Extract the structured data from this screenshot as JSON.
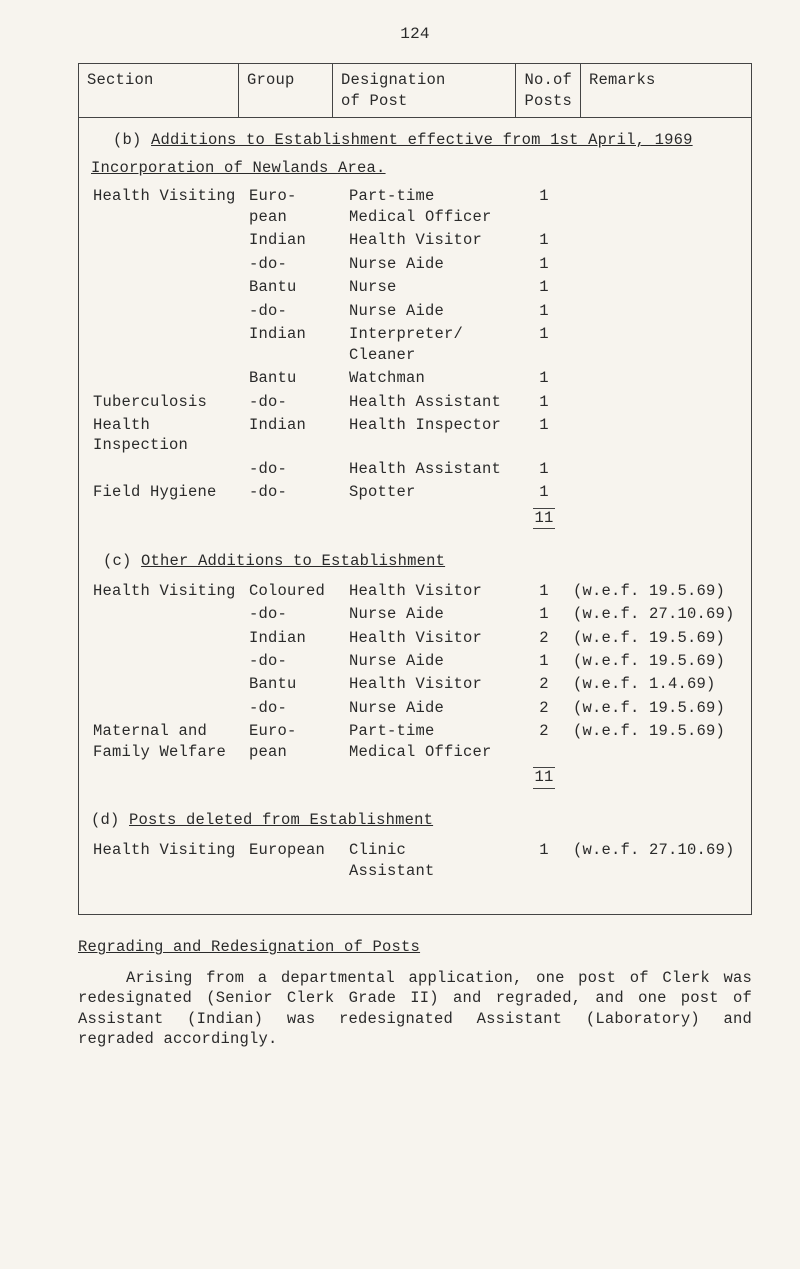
{
  "page_number": "124",
  "header": {
    "section": "Section",
    "group": "Group",
    "designation_l1": "Designation",
    "designation_l2": "of Post",
    "posts_l1": "No.of",
    "posts_l2": "Posts",
    "remarks": "Remarks"
  },
  "part_b": {
    "label": "(b)",
    "title": "Additions to Establishment effective from 1st April, 1969",
    "sub": "Incorporation of Newlands Area.",
    "rows": [
      {
        "section": "Health Visiting",
        "group": "Euro-\npean",
        "design": "Part-time\nMedical Officer",
        "n": "1",
        "rem": ""
      },
      {
        "section": "",
        "group": "Indian",
        "design": "Health Visitor",
        "n": "1",
        "rem": ""
      },
      {
        "section": "",
        "group": "-do-",
        "design": "Nurse Aide",
        "n": "1",
        "rem": ""
      },
      {
        "section": "",
        "group": "Bantu",
        "design": "Nurse",
        "n": "1",
        "rem": ""
      },
      {
        "section": "",
        "group": "-do-",
        "design": "Nurse Aide",
        "n": "1",
        "rem": ""
      },
      {
        "section": "",
        "group": "Indian",
        "design": "Interpreter/\nCleaner",
        "n": "1",
        "rem": ""
      },
      {
        "section": "",
        "group": "Bantu",
        "design": "Watchman",
        "n": "1",
        "rem": ""
      },
      {
        "section": "Tuberculosis",
        "group": "-do-",
        "design": "Health Assistant",
        "n": "1",
        "rem": ""
      },
      {
        "section": "Health Inspection",
        "group": "Indian",
        "design": "Health Inspector",
        "n": "1",
        "rem": ""
      },
      {
        "section": "",
        "group": "-do-",
        "design": "Health Assistant",
        "n": "1",
        "rem": ""
      },
      {
        "section": "Field Hygiene",
        "group": "-do-",
        "design": "Spotter",
        "n": "1",
        "rem": ""
      }
    ],
    "total": "11"
  },
  "part_c": {
    "label": "(c)",
    "title": "Other Additions to Establishment",
    "rows": [
      {
        "section": "Health Visiting",
        "group": "Coloured",
        "design": "Health Visitor",
        "n": "1",
        "rem": "(w.e.f. 19.5.69)"
      },
      {
        "section": "",
        "group": "-do-",
        "design": "Nurse Aide",
        "n": "1",
        "rem": "(w.e.f. 27.10.69)"
      },
      {
        "section": "",
        "group": "Indian",
        "design": "Health Visitor",
        "n": "2",
        "rem": "(w.e.f. 19.5.69)"
      },
      {
        "section": "",
        "group": "-do-",
        "design": "Nurse Aide",
        "n": "1",
        "rem": "(w.e.f. 19.5.69)"
      },
      {
        "section": "",
        "group": "Bantu",
        "design": "Health Visitor",
        "n": "2",
        "rem": "(w.e.f. 1.4.69)"
      },
      {
        "section": "",
        "group": "-do-",
        "design": "Nurse Aide",
        "n": "2",
        "rem": "(w.e.f. 19.5.69)"
      },
      {
        "section": "Maternal and Family Welfare",
        "group": "Euro-\npean",
        "design": "Part-time\nMedical Officer",
        "n": "2",
        "rem": "(w.e.f. 19.5.69)"
      }
    ],
    "total": "11"
  },
  "part_d": {
    "label": "(d)",
    "title": "Posts deleted from Establishment",
    "rows": [
      {
        "section": "Health Visiting",
        "group": "European",
        "design": "Clinic\nAssistant",
        "n": "1",
        "rem": "(w.e.f. 27.10.69)"
      }
    ]
  },
  "bottom": {
    "title": "Regrading and Redesignation of Posts",
    "para": "Arising from a departmental application, one post of Clerk was redesignated (Senior Clerk Grade II) and regraded, and one post of Assistant (Indian) was redesignated Assistant (Laboratory) and regraded accordingly."
  },
  "style": {
    "background": "#f7f4ee",
    "text_color": "#2a2a2a",
    "border_color": "#444444",
    "font_family": "Courier New",
    "font_size_pt": 12
  }
}
